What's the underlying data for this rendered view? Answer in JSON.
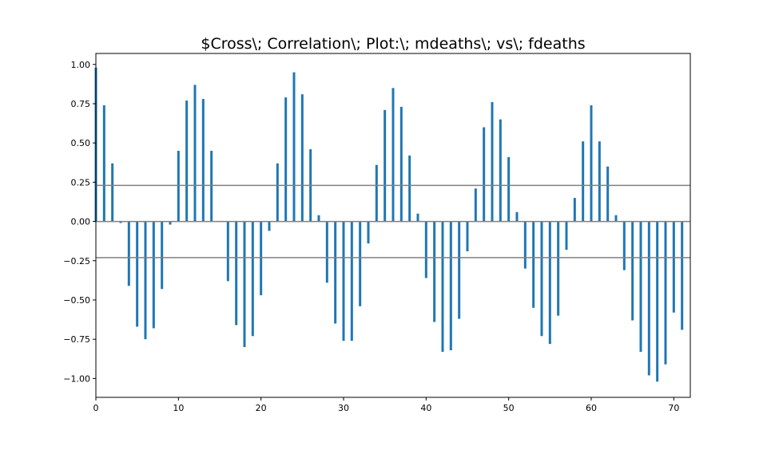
{
  "chart_data": {
    "type": "bar",
    "title": "$Cross\\; Correlation\\; Plot:\\; mdeaths\\; vs\\; fdeaths",
    "xlabel": "",
    "ylabel": "",
    "xlim": [
      0,
      72
    ],
    "ylim": [
      -1.12,
      1.07
    ],
    "xticks": [
      0,
      10,
      20,
      30,
      40,
      50,
      60,
      70
    ],
    "yticks": [
      -1.0,
      -0.75,
      -0.5,
      -0.25,
      0.0,
      0.25,
      0.5,
      0.75,
      1.0
    ],
    "xtick_labels": [
      "0",
      "10",
      "20",
      "30",
      "40",
      "50",
      "60",
      "70"
    ],
    "ytick_labels": [
      "−1.00",
      "−0.75",
      "−0.50",
      "−0.25",
      "0.00",
      "0.25",
      "0.50",
      "0.75",
      "1.00"
    ],
    "grid": false,
    "bar_color": "#1f77b4",
    "reference_line_color": "#808080",
    "reference_lines": [
      0.23,
      0,
      -0.23
    ],
    "x": [
      0,
      1,
      2,
      3,
      4,
      5,
      6,
      7,
      8,
      9,
      10,
      11,
      12,
      13,
      14,
      15,
      16,
      17,
      18,
      19,
      20,
      21,
      22,
      23,
      24,
      25,
      26,
      27,
      28,
      29,
      30,
      31,
      32,
      33,
      34,
      35,
      36,
      37,
      38,
      39,
      40,
      41,
      42,
      43,
      44,
      45,
      46,
      47,
      48,
      49,
      50,
      51,
      52,
      53,
      54,
      55,
      56,
      57,
      58,
      59,
      60,
      61,
      62,
      63,
      64,
      65,
      66,
      67,
      68,
      69,
      70,
      71
    ],
    "values": [
      0.98,
      0.74,
      0.37,
      -0.01,
      -0.41,
      -0.67,
      -0.75,
      -0.68,
      -0.43,
      -0.02,
      0.45,
      0.77,
      0.87,
      0.78,
      0.45,
      0.0,
      -0.38,
      -0.66,
      -0.8,
      -0.73,
      -0.47,
      -0.06,
      0.37,
      0.79,
      0.95,
      0.81,
      0.46,
      0.04,
      -0.39,
      -0.65,
      -0.76,
      -0.76,
      -0.54,
      -0.14,
      0.36,
      0.71,
      0.85,
      0.73,
      0.42,
      0.05,
      -0.36,
      -0.64,
      -0.83,
      -0.82,
      -0.62,
      -0.19,
      0.21,
      0.6,
      0.76,
      0.65,
      0.41,
      0.06,
      -0.3,
      -0.55,
      -0.73,
      -0.78,
      -0.6,
      -0.18,
      0.15,
      0.51,
      0.74,
      0.51,
      0.35,
      0.04,
      -0.31,
      -0.63,
      -0.83,
      -0.98,
      -1.02,
      -0.91,
      -0.58,
      -0.69
    ]
  }
}
